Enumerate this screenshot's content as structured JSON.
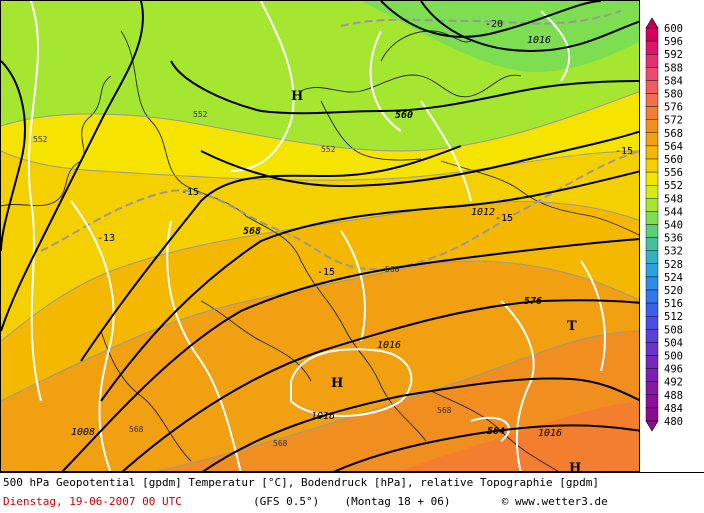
{
  "map": {
    "highs": [
      {
        "label": "H"
      },
      {
        "label": "H"
      },
      {
        "label": "H"
      }
    ],
    "lows": [
      {
        "label": "T"
      }
    ],
    "isobar_labels": [
      "1008",
      "1012",
      "1016",
      "1016",
      "1016",
      "1016"
    ],
    "height_labels": [
      "560",
      "568",
      "576",
      "584"
    ],
    "topo_labels": [
      "552",
      "552",
      "552",
      "560",
      "568",
      "568",
      "568"
    ],
    "temp_labels": [
      "-20",
      "-15",
      "-15",
      "-15",
      "-15",
      "-15",
      "-13"
    ]
  },
  "legend": {
    "levels": [
      "600",
      "596",
      "592",
      "588",
      "584",
      "580",
      "576",
      "572",
      "568",
      "564",
      "560",
      "556",
      "552",
      "548",
      "544",
      "540",
      "536",
      "532",
      "528",
      "524",
      "520",
      "516",
      "512",
      "508",
      "504",
      "500",
      "496",
      "492",
      "488",
      "484",
      "480"
    ],
    "colors": [
      "#c40052",
      "#d4005e",
      "#dc146a",
      "#e43070",
      "#ec4a70",
      "#f05c60",
      "#f46e48",
      "#f47e30",
      "#f08e20",
      "#f0a010",
      "#f4b800",
      "#f4d000",
      "#f4e400",
      "#d4ec10",
      "#a4e630",
      "#7cde50",
      "#5cd074",
      "#44bfa0",
      "#34b0c4",
      "#2ca0e0",
      "#2c8ce8",
      "#3076ec",
      "#3a60ec",
      "#4a4ce4",
      "#5a40d8",
      "#6834cc",
      "#7428c0",
      "#7c20b4",
      "#8418a8",
      "#8c109c",
      "#8c0c90"
    ]
  },
  "footer": {
    "title": "500 hPa Geopotential [gpdm] Temperatur [°C], Bodendruck [hPa], relative Topographie [gpdm]",
    "date": "Dienstag, 19-06-2007  00 UTC",
    "model": "(GFS 0.5°)",
    "run": "(Montag 18 + 06)",
    "copyright": "© www.wetter3.de"
  }
}
